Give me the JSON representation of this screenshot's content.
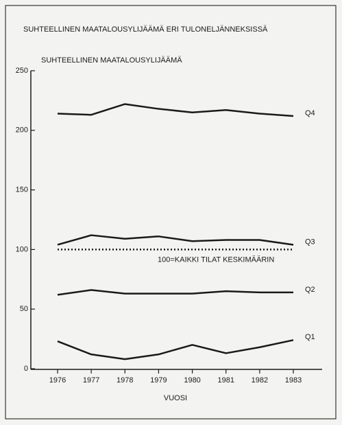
{
  "chart_data": {
    "type": "line",
    "title": "SUHTEELLINEN MAATALOUSYLIJÄÄMÄ ERI TULONELJÄNNEKSISSÄ",
    "y_label": "SUHTEELLINEN MAATALOUSYLIJÄÄMÄ",
    "x_label": "VUOSI",
    "categories": [
      "1976",
      "1977",
      "1978",
      "1979",
      "1980",
      "1981",
      "1982",
      "1983"
    ],
    "series": [
      {
        "name": "Q4",
        "color": "#1a1a1a",
        "values": [
          214,
          213,
          222,
          218,
          215,
          217,
          214,
          212
        ]
      },
      {
        "name": "Q3",
        "color": "#1a1a1a",
        "values": [
          104,
          112,
          109,
          111,
          107,
          108,
          108,
          104
        ]
      },
      {
        "name": "Q2",
        "color": "#1a1a1a",
        "values": [
          62,
          66,
          63,
          63,
          63,
          65,
          64,
          64
        ]
      },
      {
        "name": "Q1",
        "color": "#1a1a1a",
        "values": [
          23,
          12,
          8,
          12,
          20,
          13,
          18,
          24
        ]
      }
    ],
    "reference": {
      "value": 100,
      "label": "100=KAIKKI TILAT KESKIMÄÄRIN"
    },
    "ylim": [
      0,
      250
    ],
    "yticks": [
      0,
      50,
      100,
      150,
      200,
      250
    ]
  }
}
